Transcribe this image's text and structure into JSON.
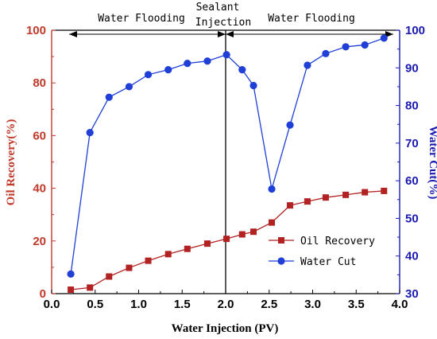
{
  "chart_data": {
    "type": "line",
    "x_axis": {
      "label": "Water Injection (PV)",
      "range": [
        0.0,
        4.0
      ],
      "ticks": [
        "0.0",
        "0.5",
        "1.0",
        "1.5",
        "2.0",
        "2.5",
        "3.0",
        "3.5",
        "4.0"
      ]
    },
    "y_left": {
      "label": "Oil Recovery(%)",
      "range": [
        0,
        100
      ],
      "ticks": [
        "0",
        "20",
        "40",
        "60",
        "80",
        "100"
      ],
      "color": "#c0392b"
    },
    "y_right": {
      "label": "Water Cut(%)",
      "range": [
        30,
        100
      ],
      "ticks": [
        "30",
        "40",
        "50",
        "60",
        "70",
        "80",
        "90",
        "100"
      ],
      "color": "#1a1ab0"
    },
    "series": [
      {
        "name": "Oil Recovery",
        "axis": "left",
        "marker": "square",
        "color": "#b22222",
        "x": [
          0.22,
          0.44,
          0.66,
          0.89,
          1.11,
          1.34,
          1.56,
          1.79,
          2.01,
          2.19,
          2.32,
          2.53,
          2.74,
          2.94,
          3.15,
          3.38,
          3.6,
          3.82
        ],
        "y": [
          1.5,
          2.3,
          6.5,
          9.8,
          12.5,
          15.0,
          17.0,
          19.0,
          20.8,
          22.5,
          23.5,
          27.0,
          33.5,
          35.0,
          36.5,
          37.5,
          38.5,
          39.0
        ]
      },
      {
        "name": "Water Cut",
        "axis": "right",
        "marker": "circle",
        "color": "#1f3fd6",
        "x": [
          0.22,
          0.44,
          0.66,
          0.89,
          1.11,
          1.34,
          1.56,
          1.79,
          2.01,
          2.19,
          2.32,
          2.53,
          2.74,
          2.94,
          3.15,
          3.38,
          3.6,
          3.82
        ],
        "y": [
          35.2,
          72.8,
          82.2,
          85.0,
          88.2,
          89.5,
          91.2,
          91.8,
          93.5,
          89.5,
          85.3,
          57.8,
          74.8,
          90.7,
          93.8,
          95.6,
          96.1,
          97.9
        ]
      }
    ],
    "divider_x": 2.0,
    "annotations": {
      "left_phase": "Water Flooding",
      "middle_line1": "Sealant",
      "middle_line2": "Injection",
      "right_phase": "Water Flooding"
    },
    "legend_position": "lower-right",
    "grid": false
  }
}
